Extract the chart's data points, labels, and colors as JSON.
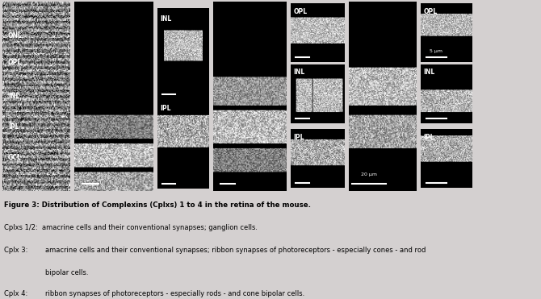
{
  "bg_color": "#d4d0d0",
  "image_area_bg": "#000000",
  "fig_width": 6.7,
  "fig_height": 3.71,
  "title_text": "Cplx 1/2",
  "title2_text": "Cplx 3",
  "title3_text": "Cplx 4",
  "caption_lines": [
    {
      "text": "Figure 3: Distribution of Complexins (Cplxs) 1 to 4 in the retina of the mouse.",
      "bold": true
    },
    {
      "text": "Cplxs 1/2:  amacrine cells and their conventional synapses; ganglion cells.",
      "bold": false
    },
    {
      "text": "Cplx 3:    amacrine cells and their conventional synapses; ribbon synapses of photoreceptors - especially cones - and rod",
      "bold": false
    },
    {
      "text": "               bipolar cells.",
      "bold": false
    },
    {
      "text": "Cplx 4:    ribbon synapses of photoreceptors - especially rods - and cone bipolar cells.",
      "bold": false
    }
  ],
  "labels_left": [
    "ONL",
    "OPL",
    "INL",
    "IPL",
    "GCL"
  ],
  "labels_inset1": [
    "INL",
    "IPL"
  ],
  "labels_inset2_3": [
    "OPL",
    "INL",
    "IPL"
  ],
  "scale_bar_20": "20 μm",
  "scale_bar_5": "5 μm"
}
